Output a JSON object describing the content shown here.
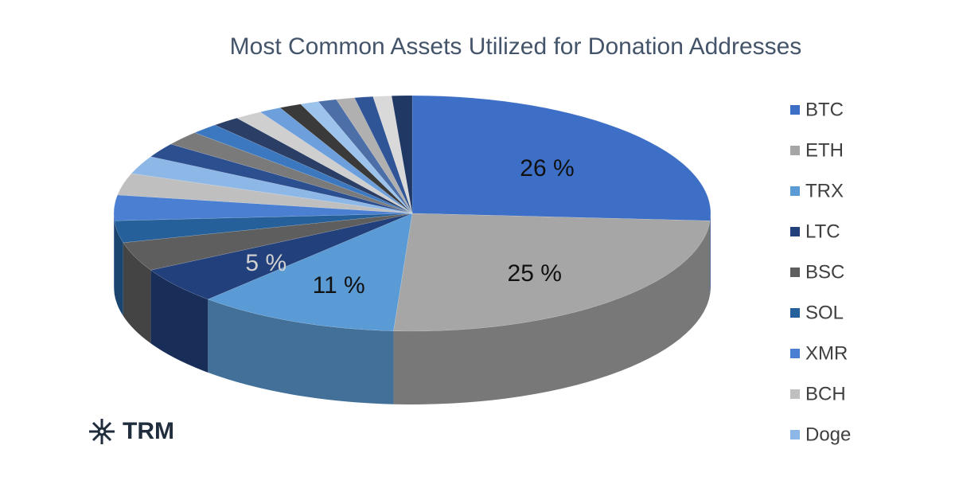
{
  "chart_data": {
    "type": "pie",
    "title": "Most Common Assets Utilized for Donation Addresses",
    "categories": [
      "BTC",
      "ETH",
      "TRX",
      "LTC",
      "BSC",
      "SOL",
      "XMR",
      "BCH",
      "Doge",
      null,
      null,
      null,
      null,
      null,
      null,
      null,
      null,
      null,
      null,
      null,
      null,
      null
    ],
    "values": [
      26,
      25,
      11,
      5,
      4,
      3,
      3.5,
      3,
      2.5,
      2,
      2,
      1.5,
      1.5,
      1.5,
      1.2,
      1.2,
      1,
      1,
      1,
      1,
      1,
      1.1
    ],
    "value_labels": [
      "26 %",
      "25 %",
      "11 %",
      "5 %",
      null,
      null,
      null,
      null,
      null,
      null,
      null,
      null,
      null,
      null,
      null,
      null,
      null,
      null,
      null,
      null,
      null,
      null
    ],
    "colors": [
      "#3e6fc6",
      "#a6a6a6",
      "#5b9bd5",
      "#22407c",
      "#5e5e5e",
      "#25609a",
      "#4a7fd2",
      "#bfbfbf",
      "#8db7e6",
      "#2c4f8f",
      "#7a7a7a",
      "#3b78c0",
      "#2a3e66",
      "#cfcfcf",
      "#6c9fdc",
      "#3a3a3a",
      "#9cc3ec",
      "#4d6fa8",
      "#b0b0b0",
      "#2f5597",
      "#d9d9d9",
      "#1f3864"
    ],
    "legend": "right"
  },
  "logo": "TRM"
}
